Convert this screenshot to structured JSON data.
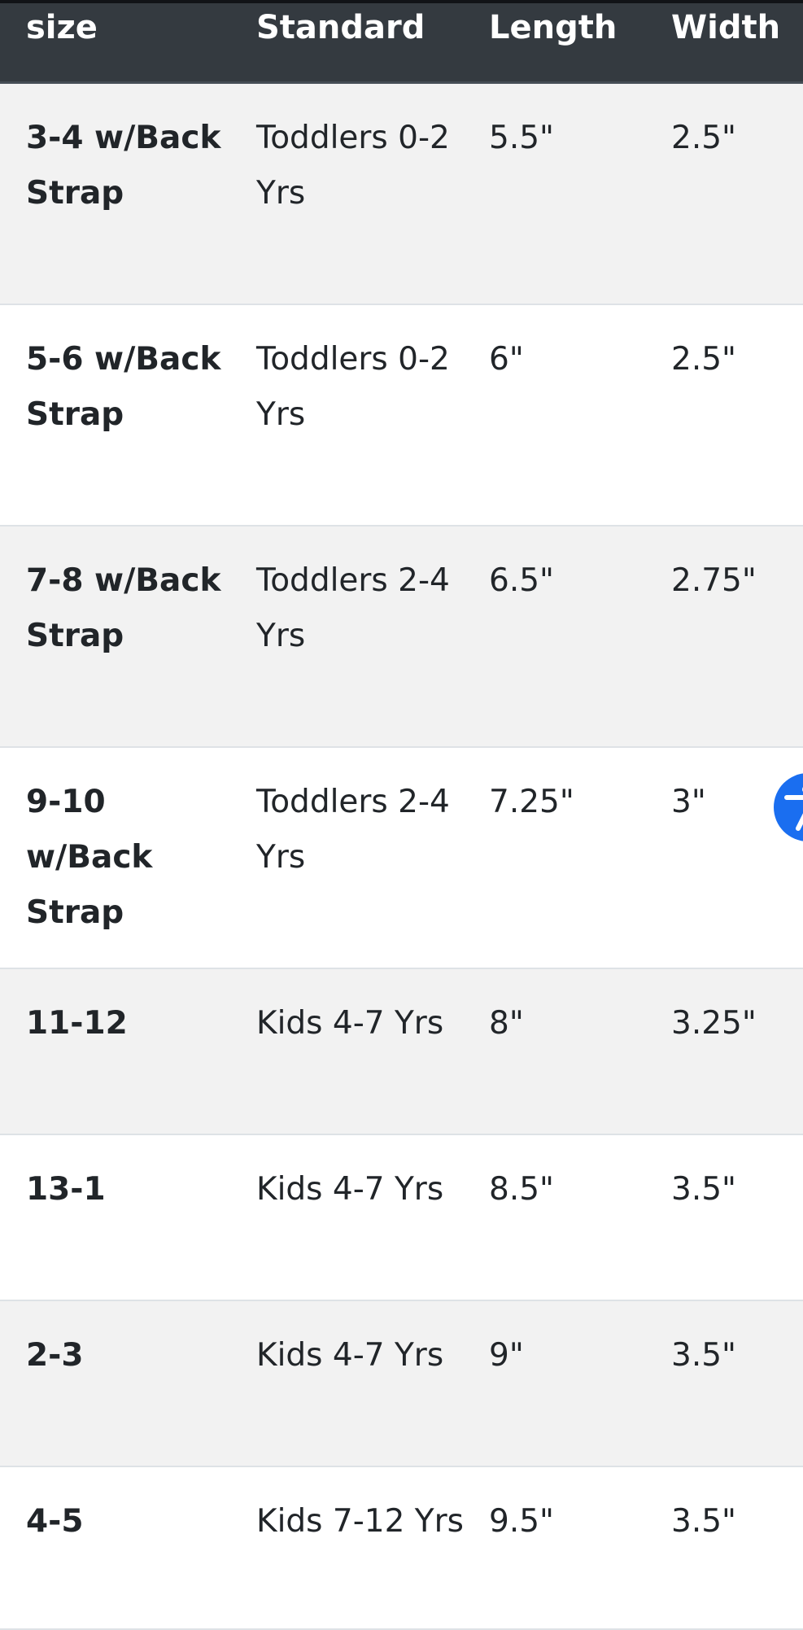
{
  "table": {
    "headers": [
      "size",
      "Standard",
      "Length",
      "Width"
    ],
    "rows": [
      {
        "size": "3-4 w/Back Strap",
        "standard": "Toddlers 0-2 Yrs",
        "length": "5.5\"",
        "width": "2.5\""
      },
      {
        "size": "5-6 w/Back Strap",
        "standard": "Toddlers 0-2 Yrs",
        "length": "6\"",
        "width": "2.5\""
      },
      {
        "size": "7-8 w/Back Strap",
        "standard": "Toddlers 2-4 Yrs",
        "length": "6.5\"",
        "width": "2.75\""
      },
      {
        "size": "9-10 w/Back Strap",
        "standard": "Toddlers 2-4 Yrs",
        "length": "7.25\"",
        "width": "3\""
      },
      {
        "size": "11-12",
        "standard": "Kids 4-7 Yrs",
        "length": "8\"",
        "width": "3.25\""
      },
      {
        "size": "13-1",
        "standard": "Kids 4-7 Yrs",
        "length": "8.5\"",
        "width": "3.5\""
      },
      {
        "size": "2-3",
        "standard": "Kids 4-7 Yrs",
        "length": "9\"",
        "width": "3.5\""
      },
      {
        "size": "4-5",
        "standard": "Kids 7-12 Yrs",
        "length": "9.5\"",
        "width": "3.5\""
      }
    ]
  },
  "accessibility_button": {
    "icon": "accessibility-icon",
    "color": "#1a6ef0"
  },
  "colors": {
    "header_bg": "#343a40",
    "stripe": "#f2f2f2"
  }
}
